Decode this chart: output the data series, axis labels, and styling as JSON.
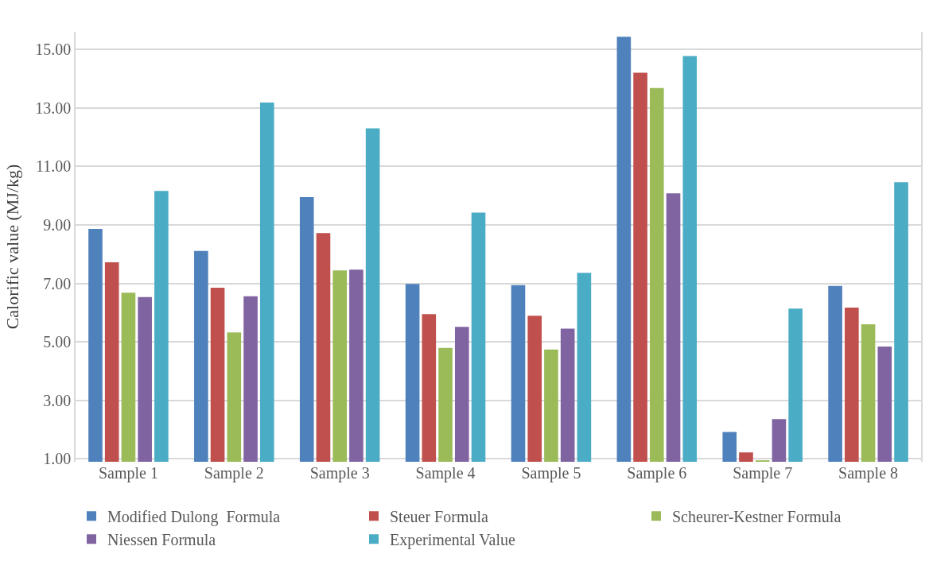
{
  "chart_data": {
    "type": "bar",
    "ylabel": "Calorific value (MJ/kg)",
    "categories": [
      "Sample 1",
      "Sample 2",
      "Sample 3",
      "Sample 4",
      "Sample 5",
      "Sample 6",
      "Sample 7",
      "Sample 8"
    ],
    "series": [
      {
        "name": "Modified Dulong  Formula",
        "color": "#4f81bd",
        "values": [
          8.86,
          8.11,
          9.95,
          6.98,
          6.94,
          15.43,
          1.92,
          6.91
        ]
      },
      {
        "name": "Steuer Formula",
        "color": "#c0504d",
        "values": [
          7.72,
          6.85,
          8.72,
          5.95,
          5.89,
          14.2,
          1.22,
          6.17
        ]
      },
      {
        "name": "Scheurer-Kestner Formula",
        "color": "#9bbb59",
        "values": [
          6.68,
          5.32,
          7.44,
          4.79,
          4.74,
          13.68,
          0.95,
          5.6
        ]
      },
      {
        "name": "Niessen Formula",
        "color": "#8064a2",
        "values": [
          6.53,
          6.56,
          7.47,
          5.51,
          5.45,
          10.08,
          2.36,
          4.84
        ]
      },
      {
        "name": "Experimental Value",
        "color": "#4bacc6",
        "values": [
          10.16,
          13.18,
          12.3,
          9.42,
          7.36,
          14.77,
          6.14,
          10.46
        ]
      }
    ],
    "ylim": [
      0.9,
      15.6
    ],
    "yticks": [
      {
        "value": 1,
        "label": "1.00"
      },
      {
        "value": 3,
        "label": "3.00"
      },
      {
        "value": 5,
        "label": "5.00"
      },
      {
        "value": 7,
        "label": "7.00"
      },
      {
        "value": 9,
        "label": "9.00"
      },
      {
        "value": 11,
        "label": "11.00"
      },
      {
        "value": 13,
        "label": "13.00"
      },
      {
        "value": 15,
        "label": "15.00"
      }
    ],
    "grid": "y",
    "legend": "bottom"
  }
}
